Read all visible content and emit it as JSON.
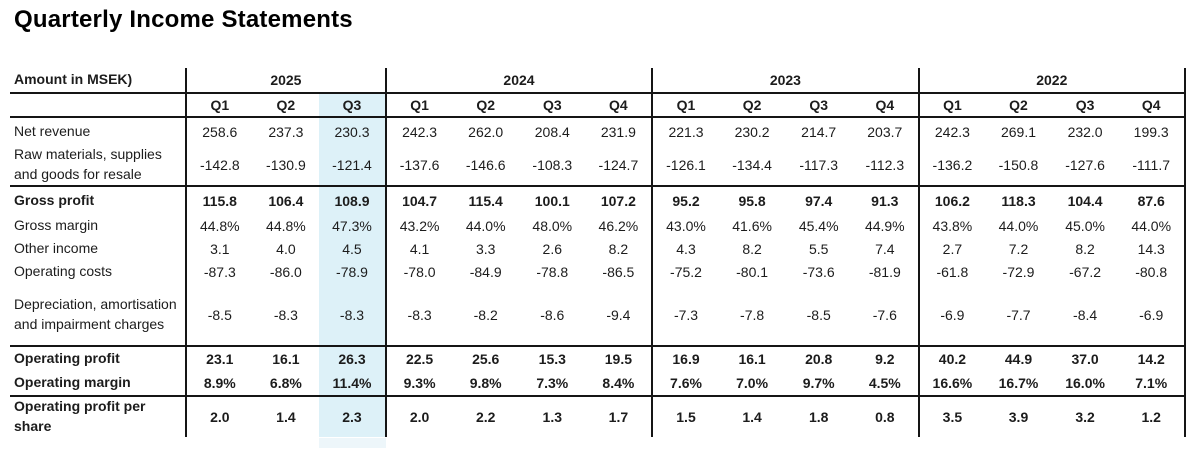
{
  "title": "Quarterly Income Statements",
  "table": {
    "corner_label": "Amount in MSEK)",
    "highlight": {
      "year": "2025",
      "quarter": "Q3",
      "color": "#ddf1f8"
    },
    "year_groups": [
      {
        "year": "2025",
        "quarters": [
          "Q1",
          "Q2",
          "Q3"
        ]
      },
      {
        "year": "2024",
        "quarters": [
          "Q1",
          "Q2",
          "Q3",
          "Q4"
        ]
      },
      {
        "year": "2023",
        "quarters": [
          "Q1",
          "Q2",
          "Q3",
          "Q4"
        ]
      },
      {
        "year": "2022",
        "quarters": [
          "Q1",
          "Q2",
          "Q3",
          "Q4"
        ]
      }
    ],
    "rows": [
      {
        "label": "Net revenue",
        "bold": false,
        "rule_below": false,
        "values": [
          "258.6",
          "237.3",
          "230.3",
          "242.3",
          "262.0",
          "208.4",
          "231.9",
          "221.3",
          "230.2",
          "214.7",
          "203.7",
          "242.3",
          "269.1",
          "232.0",
          "199.3"
        ]
      },
      {
        "label": "Raw materials, supplies and goods for resale",
        "bold": false,
        "rule_below": true,
        "values": [
          "-142.8",
          "-130.9",
          "-121.4",
          "-137.6",
          "-146.6",
          "-108.3",
          "-124.7",
          "-126.1",
          "-134.4",
          "-117.3",
          "-112.3",
          "-136.2",
          "-150.8",
          "-127.6",
          "-111.7"
        ]
      },
      {
        "label": "Gross profit",
        "bold": true,
        "rule_below": false,
        "values": [
          "115.8",
          "106.4",
          "108.9",
          "104.7",
          "115.4",
          "100.1",
          "107.2",
          "95.2",
          "95.8",
          "97.4",
          "91.3",
          "106.2",
          "118.3",
          "104.4",
          "87.6"
        ]
      },
      {
        "label": "Gross margin",
        "bold": false,
        "rule_below": false,
        "values": [
          "44.8%",
          "44.8%",
          "47.3%",
          "43.2%",
          "44.0%",
          "48.0%",
          "46.2%",
          "43.0%",
          "41.6%",
          "45.4%",
          "44.9%",
          "43.8%",
          "44.0%",
          "45.0%",
          "44.0%"
        ]
      },
      {
        "label": "Other income",
        "bold": false,
        "rule_below": false,
        "values": [
          "3.1",
          "4.0",
          "4.5",
          "4.1",
          "3.3",
          "2.6",
          "8.2",
          "4.3",
          "8.2",
          "5.5",
          "7.4",
          "2.7",
          "7.2",
          "8.2",
          "14.3"
        ]
      },
      {
        "label": "Operating costs",
        "bold": false,
        "rule_below": false,
        "values": [
          "-87.3",
          "-86.0",
          "-78.9",
          "-78.0",
          "-84.9",
          "-78.8",
          "-86.5",
          "-75.2",
          "-80.1",
          "-73.6",
          "-81.9",
          "-61.8",
          "-72.9",
          "-67.2",
          "-80.8"
        ]
      },
      {
        "label": "Depreciation, amortisation and impairment charges",
        "bold": false,
        "rule_below": true,
        "values": [
          "-8.5",
          "-8.3",
          "-8.3",
          "-8.3",
          "-8.2",
          "-8.6",
          "-9.4",
          "-7.3",
          "-7.8",
          "-8.5",
          "-7.6",
          "-6.9",
          "-7.7",
          "-8.4",
          "-6.9"
        ]
      },
      {
        "label": "Operating profit",
        "bold": true,
        "rule_below": false,
        "values": [
          "23.1",
          "16.1",
          "26.3",
          "22.5",
          "25.6",
          "15.3",
          "19.5",
          "16.9",
          "16.1",
          "20.8",
          "9.2",
          "40.2",
          "44.9",
          "37.0",
          "14.2"
        ]
      },
      {
        "label": "Operating margin",
        "bold": true,
        "rule_below": true,
        "values": [
          "8.9%",
          "6.8%",
          "11.4%",
          "9.3%",
          "9.8%",
          "7.3%",
          "8.4%",
          "7.6%",
          "7.0%",
          "9.7%",
          "4.5%",
          "16.6%",
          "16.7%",
          "16.0%",
          "7.1%"
        ]
      },
      {
        "label": "Operating profit per share",
        "bold": true,
        "rule_below": false,
        "values": [
          "2.0",
          "1.4",
          "2.3",
          "2.0",
          "2.2",
          "1.3",
          "1.7",
          "1.5",
          "1.4",
          "1.8",
          "0.8",
          "3.5",
          "3.9",
          "3.2",
          "1.2"
        ]
      }
    ]
  }
}
